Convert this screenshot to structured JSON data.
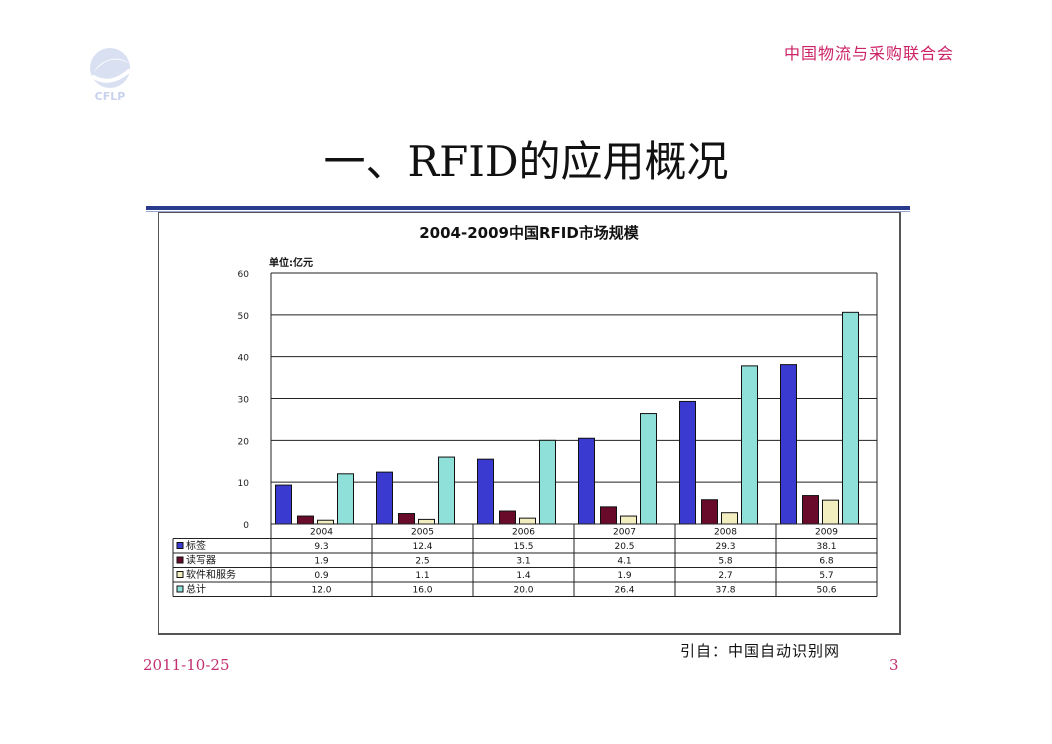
{
  "header": {
    "org_name": "中国物流与采购联合会",
    "logo_text": "CFLP"
  },
  "slide": {
    "title": "一、RFID的应用概况",
    "source": "引自：中国自动识别网",
    "date": "2011-10-25",
    "page_number": "3"
  },
  "colors": {
    "accent": "#cc2266",
    "rule": "#2a3a8c"
  },
  "chart_data": {
    "type": "bar",
    "title": "2004-2009中国RFID市场规模",
    "unit_label": "单位:亿元",
    "categories": [
      "2004",
      "2005",
      "2006",
      "2007",
      "2008",
      "2009"
    ],
    "ylim": [
      0,
      60
    ],
    "yticks": [
      0,
      10,
      20,
      30,
      40,
      50,
      60
    ],
    "grid": true,
    "series": [
      {
        "name": "标签",
        "color": "#3a3ad0",
        "values": [
          9.3,
          12.4,
          15.5,
          20.5,
          29.3,
          38.1
        ],
        "labels": [
          "9.3",
          "12.4",
          "15.5",
          "20.5",
          "29.3",
          "38.1"
        ]
      },
      {
        "name": "读写器",
        "color": "#6a0a2a",
        "values": [
          1.9,
          2.5,
          3.1,
          4.1,
          5.8,
          6.8
        ],
        "labels": [
          "1.9",
          "2.5",
          "3.1",
          "4.1",
          "5.8",
          "6.8"
        ]
      },
      {
        "name": "软件和服务",
        "color": "#f2eec0",
        "values": [
          0.9,
          1.1,
          1.4,
          1.9,
          2.7,
          5.7
        ],
        "labels": [
          "0.9",
          "1.1",
          "1.4",
          "1.9",
          "2.7",
          "5.7"
        ]
      },
      {
        "name": "总计",
        "color": "#8fe0d8",
        "values": [
          12.0,
          16.0,
          20.0,
          26.4,
          37.8,
          50.6
        ],
        "labels": [
          "12.0",
          "16.0",
          "20.0",
          "26.4",
          "37.8",
          "50.6"
        ]
      }
    ]
  }
}
